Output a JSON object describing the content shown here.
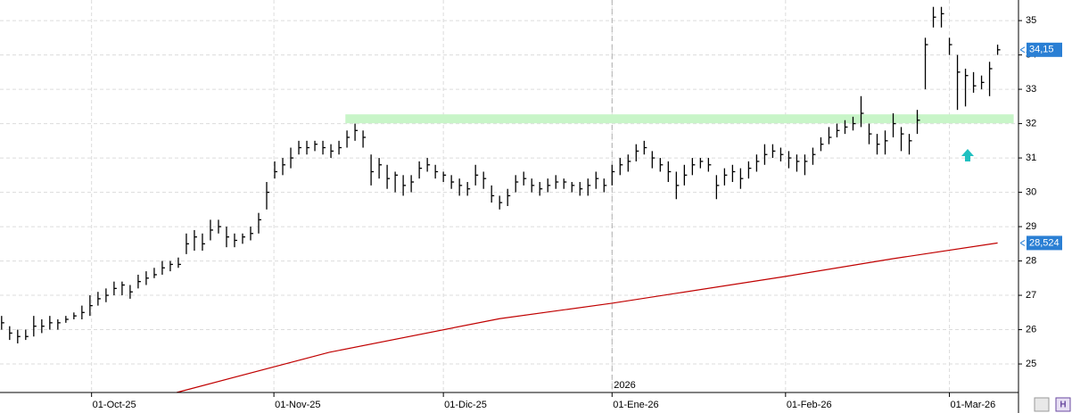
{
  "chart_data": {
    "type": "ohlc",
    "year_marker": {
      "value": 76.0,
      "label": "2026"
    },
    "xlim": [
      -0.2,
      126.6
    ],
    "xticks": [
      {
        "value": 11.2,
        "label": "01-Oct-25"
      },
      {
        "value": 33.9,
        "label": "01-Nov-25"
      },
      {
        "value": 55.0,
        "label": "01-Dic-25"
      },
      {
        "value": 76.0,
        "label": "01-Ene-26"
      },
      {
        "value": 97.6,
        "label": "01-Feb-26"
      },
      {
        "value": 118.0,
        "label": "01-Mar-26"
      }
    ],
    "ylim": [
      24.17,
      35.6
    ],
    "yticks": [
      25,
      26,
      27,
      28,
      29,
      30,
      31,
      32,
      33,
      34,
      35
    ],
    "grid": true,
    "color": "#000000",
    "high": [
      26.4,
      26.1,
      26.0,
      26.0,
      26.4,
      26.3,
      26.4,
      26.3,
      26.4,
      26.5,
      26.7,
      27.0,
      27.1,
      27.2,
      27.4,
      27.4,
      27.3,
      27.6,
      27.7,
      27.8,
      28.0,
      28.0,
      28.1,
      28.8,
      28.9,
      28.8,
      29.2,
      29.2,
      29.0,
      28.8,
      28.8,
      29.0,
      29.4,
      30.3,
      30.9,
      31.0,
      31.3,
      31.5,
      31.5,
      31.5,
      31.5,
      31.4,
      31.5,
      31.8,
      32.0,
      31.8,
      31.1,
      31.0,
      30.8,
      30.6,
      30.5,
      30.5,
      30.9,
      31.0,
      30.8,
      30.6,
      30.5,
      30.4,
      30.3,
      30.8,
      30.6,
      30.2,
      29.9,
      30.1,
      30.5,
      30.6,
      30.4,
      30.3,
      30.4,
      30.5,
      30.4,
      30.3,
      30.3,
      30.4,
      30.6,
      30.4,
      30.8,
      31.0,
      31.1,
      31.4,
      31.5,
      31.2,
      31.0,
      30.9,
      30.6,
      30.8,
      31.0,
      31.0,
      31.0,
      30.5,
      30.7,
      30.8,
      30.7,
      30.9,
      31.1,
      31.4,
      31.4,
      31.3,
      31.2,
      31.1,
      31.1,
      31.3,
      31.6,
      31.9,
      32.0,
      32.1,
      32.2,
      32.8,
      32.0,
      31.7,
      31.8,
      32.3,
      31.9,
      31.7,
      32.4,
      34.5,
      35.4,
      35.4,
      34.5,
      34.0,
      33.6,
      33.5,
      33.4,
      33.8,
      34.3
    ],
    "low": [
      26.0,
      25.7,
      25.6,
      25.7,
      25.8,
      25.9,
      26.0,
      26.0,
      26.2,
      26.3,
      26.3,
      26.4,
      26.7,
      26.8,
      27.0,
      27.0,
      26.9,
      27.2,
      27.3,
      27.5,
      27.6,
      27.7,
      27.8,
      28.2,
      28.3,
      28.3,
      28.6,
      28.8,
      28.4,
      28.4,
      28.5,
      28.6,
      28.8,
      29.5,
      30.4,
      30.5,
      30.7,
      31.1,
      31.1,
      31.2,
      31.1,
      31.0,
      31.1,
      31.3,
      31.5,
      31.3,
      30.2,
      30.4,
      30.1,
      30.0,
      29.9,
      30.0,
      30.4,
      30.6,
      30.4,
      30.3,
      30.1,
      29.9,
      29.9,
      30.2,
      30.1,
      29.7,
      29.5,
      29.6,
      30.0,
      30.2,
      30.0,
      29.9,
      30.0,
      30.1,
      30.1,
      30.0,
      29.9,
      29.9,
      30.1,
      30.0,
      30.2,
      30.5,
      30.6,
      30.9,
      31.1,
      30.7,
      30.6,
      30.3,
      29.8,
      30.2,
      30.5,
      30.7,
      30.6,
      29.8,
      30.2,
      30.3,
      30.1,
      30.4,
      30.6,
      30.8,
      31.0,
      30.9,
      30.7,
      30.6,
      30.5,
      30.8,
      31.2,
      31.4,
      31.6,
      31.7,
      31.8,
      31.9,
      31.4,
      31.1,
      31.1,
      31.6,
      31.2,
      31.1,
      31.7,
      33.0,
      34.8,
      34.8,
      34.0,
      32.4,
      32.5,
      32.9,
      33.0,
      32.8,
      34.0
    ],
    "close": [
      26.2,
      25.9,
      25.8,
      25.8,
      26.1,
      26.1,
      26.2,
      26.2,
      26.3,
      26.4,
      26.5,
      26.7,
      26.9,
      27.0,
      27.2,
      27.3,
      27.1,
      27.4,
      27.5,
      27.6,
      27.8,
      27.9,
      27.9,
      28.5,
      28.7,
      28.5,
      28.9,
      29.0,
      28.7,
      28.6,
      28.7,
      28.8,
      29.2,
      30.0,
      30.6,
      30.8,
      31.0,
      31.3,
      31.3,
      31.4,
      31.3,
      31.2,
      31.3,
      31.6,
      31.8,
      31.6,
      30.6,
      30.8,
      30.4,
      30.5,
      30.2,
      30.3,
      30.7,
      30.8,
      30.6,
      30.5,
      30.3,
      30.2,
      30.1,
      30.5,
      30.4,
      29.9,
      29.7,
      29.9,
      30.3,
      30.4,
      30.2,
      30.1,
      30.2,
      30.3,
      30.3,
      30.2,
      30.1,
      30.2,
      30.4,
      30.2,
      30.6,
      30.8,
      30.9,
      31.2,
      31.3,
      31.0,
      30.8,
      30.6,
      30.2,
      30.5,
      30.8,
      30.9,
      30.8,
      30.2,
      30.5,
      30.6,
      30.4,
      30.7,
      30.9,
      31.1,
      31.2,
      31.1,
      31.0,
      30.9,
      30.9,
      31.1,
      31.4,
      31.6,
      31.8,
      31.9,
      32.0,
      32.3,
      31.7,
      31.4,
      31.5,
      32.0,
      31.7,
      31.5,
      32.1,
      34.3,
      35.1,
      35.2,
      34.3,
      33.5,
      33.4,
      33.1,
      33.2,
      33.6,
      34.15
    ],
    "last_price": {
      "value": 34.15,
      "label": "34,15"
    },
    "ma": {
      "color": "#c00000",
      "x": [
        21.8,
        40.8,
        62.0,
        76.0,
        97.6,
        110.8,
        124.0
      ],
      "values": [
        24.17,
        25.34,
        26.32,
        26.77,
        27.55,
        28.06,
        28.524
      ],
      "last_label": {
        "value": 28.524,
        "label": "28,524"
      }
    },
    "zone": {
      "x": [
        42.8,
        126.0
      ],
      "values": [
        32.01,
        32.27
      ],
      "color": "#c8f5c8"
    }
  }
}
